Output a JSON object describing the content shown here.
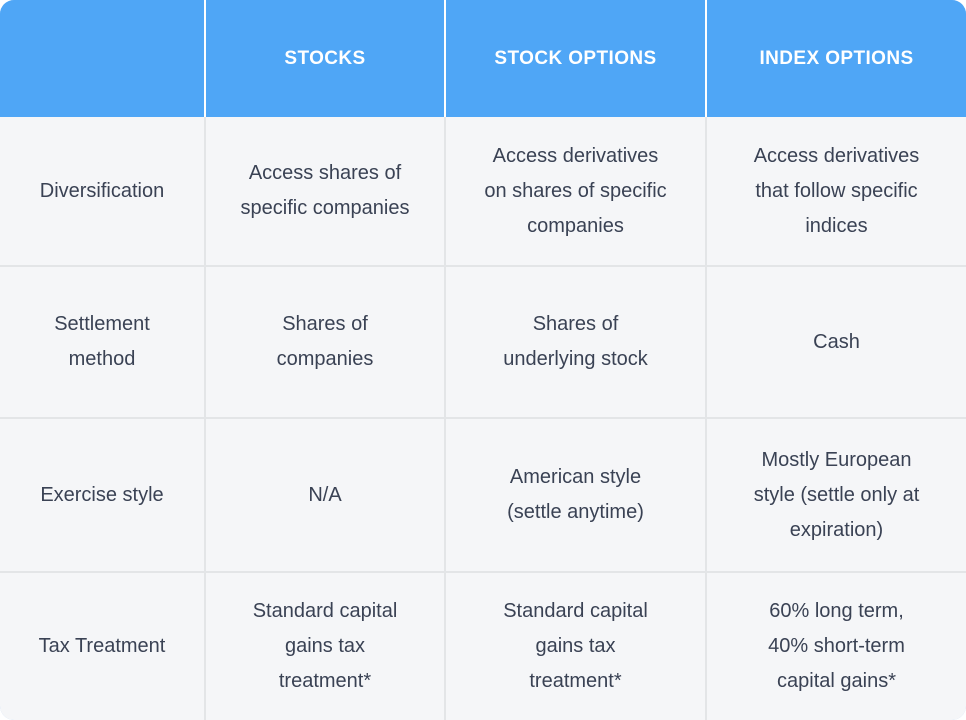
{
  "colors": {
    "header_bg": "#4FA6F6",
    "corner_rim": "#A8CBF4",
    "cell_bg": "#F5F6F8",
    "divider": "#E3E5E7",
    "header_text": "#FFFFFF",
    "body_text": "#3A4254"
  },
  "header": {
    "columns": [
      "STOCKS",
      "STOCK OPTIONS",
      "INDEX OPTIONS"
    ]
  },
  "rows": [
    {
      "label": "Diversification",
      "cells": [
        "Access shares of\nspecific companies",
        "Access derivatives\non shares of specific\ncompanies",
        "Access derivatives\nthat follow specific\nindices"
      ]
    },
    {
      "label": "Settlement\nmethod",
      "cells": [
        "Shares of\ncompanies",
        "Shares of\nunderlying stock",
        "Cash"
      ]
    },
    {
      "label": "Exercise style",
      "cells": [
        "N/A",
        "American style\n(settle anytime)",
        "Mostly European\nstyle (settle only at\nexpiration)"
      ]
    },
    {
      "label": "Tax Treatment",
      "cells": [
        "Standard capital\ngains tax\ntreatment*",
        "Standard capital\ngains tax\ntreatment*",
        "60% long term,\n40% short-term\ncapital gains*"
      ]
    }
  ]
}
